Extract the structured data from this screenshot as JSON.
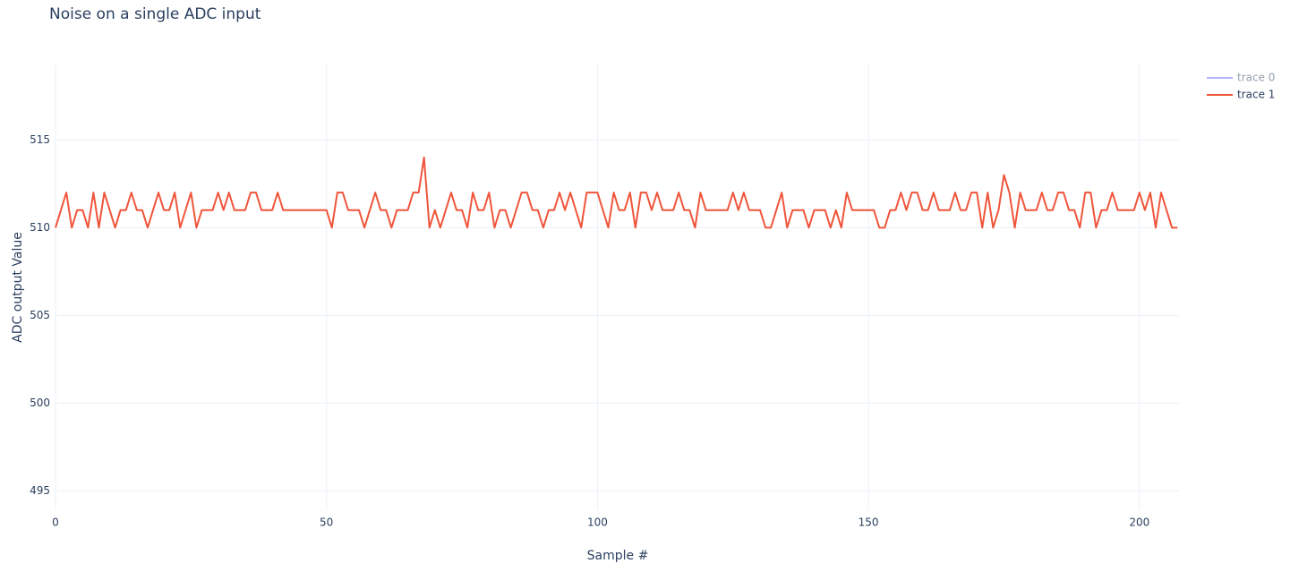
{
  "chart_data": {
    "type": "line",
    "title": "Noise on a single ADC input",
    "x_label": "Sample #",
    "y_label": "ADC output Value",
    "x": [
      0,
      1,
      2,
      3,
      4,
      5,
      6,
      7,
      8,
      9,
      10,
      11,
      12,
      13,
      14,
      15,
      16,
      17,
      18,
      19,
      20,
      21,
      22,
      23,
      24,
      25,
      26,
      27,
      28,
      29,
      30,
      31,
      32,
      33,
      34,
      35,
      36,
      37,
      38,
      39,
      40,
      41,
      42,
      43,
      44,
      45,
      46,
      47,
      48,
      49,
      50,
      51,
      52,
      53,
      54,
      55,
      56,
      57,
      58,
      59,
      60,
      61,
      62,
      63,
      64,
      65,
      66,
      67,
      68,
      69,
      70,
      71,
      72,
      73,
      74,
      75,
      76,
      77,
      78,
      79,
      80,
      81,
      82,
      83,
      84,
      85,
      86,
      87,
      88,
      89,
      90,
      91,
      92,
      93,
      94,
      95,
      96,
      97,
      98,
      99,
      100,
      101,
      102,
      103,
      104,
      105,
      106,
      107,
      108,
      109,
      110,
      111,
      112,
      113,
      114,
      115,
      116,
      117,
      118,
      119,
      120,
      121,
      122,
      123,
      124,
      125,
      126,
      127,
      128,
      129,
      130,
      131,
      132,
      133,
      134,
      135,
      136,
      137,
      138,
      139,
      140,
      141,
      142,
      143,
      144,
      145,
      146,
      147,
      148,
      149,
      150,
      151,
      152,
      153,
      154,
      155,
      156,
      157,
      158,
      159,
      160,
      161,
      162,
      163,
      164,
      165,
      166,
      167,
      168,
      169,
      170,
      171,
      172,
      173,
      174,
      175,
      176,
      177,
      178,
      179,
      180,
      181,
      182,
      183,
      184,
      185,
      186,
      187,
      188,
      189,
      190,
      191,
      192,
      193,
      194,
      195,
      196,
      197,
      198,
      199,
      200,
      201,
      202,
      203,
      204,
      205,
      206,
      207
    ],
    "series": [
      {
        "name": "trace 0",
        "color": "#636efa",
        "visible": "legendonly"
      },
      {
        "name": "trace 1",
        "color": "#ef553b",
        "values": [
          510,
          511,
          512,
          510,
          511,
          511,
          510,
          512,
          510,
          512,
          511,
          510,
          511,
          511,
          512,
          511,
          511,
          510,
          511,
          512,
          511,
          511,
          512,
          510,
          511,
          512,
          510,
          511,
          511,
          511,
          512,
          511,
          512,
          511,
          511,
          511,
          512,
          512,
          511,
          511,
          511,
          512,
          511,
          511,
          511,
          511,
          511,
          511,
          511,
          511,
          511,
          510,
          512,
          512,
          511,
          511,
          511,
          510,
          511,
          512,
          511,
          511,
          510,
          511,
          511,
          511,
          512,
          512,
          514,
          510,
          511,
          510,
          511,
          512,
          511,
          511,
          510,
          512,
          511,
          511,
          512,
          510,
          511,
          511,
          510,
          511,
          512,
          512,
          511,
          511,
          510,
          511,
          511,
          512,
          511,
          512,
          511,
          510,
          512,
          512,
          512,
          511,
          510,
          512,
          511,
          511,
          512,
          510,
          512,
          512,
          511,
          512,
          511,
          511,
          511,
          512,
          511,
          511,
          510,
          512,
          511,
          511,
          511,
          511,
          511,
          512,
          511,
          512,
          511,
          511,
          511,
          510,
          510,
          511,
          512,
          510,
          511,
          511,
          511,
          510,
          511,
          511,
          511,
          510,
          511,
          510,
          512,
          511,
          511,
          511,
          511,
          511,
          510,
          510,
          511,
          511,
          512,
          511,
          512,
          512,
          511,
          511,
          512,
          511,
          511,
          511,
          512,
          511,
          511,
          512,
          512,
          510,
          512,
          510,
          511,
          513,
          512,
          510,
          512,
          511,
          511,
          511,
          512,
          511,
          511,
          512,
          512,
          511,
          511,
          510,
          512,
          512,
          510,
          511,
          511,
          512,
          511,
          511,
          511,
          511,
          512,
          511,
          512,
          510,
          512,
          511,
          510,
          510
        ]
      }
    ],
    "xlim": [
      0,
      207.3
    ],
    "xticks": [
      0,
      50,
      100,
      150,
      200
    ],
    "ylim": [
      493.9,
      519.3
    ],
    "yticks": [
      495,
      500,
      505,
      510,
      515
    ],
    "grid": true
  }
}
